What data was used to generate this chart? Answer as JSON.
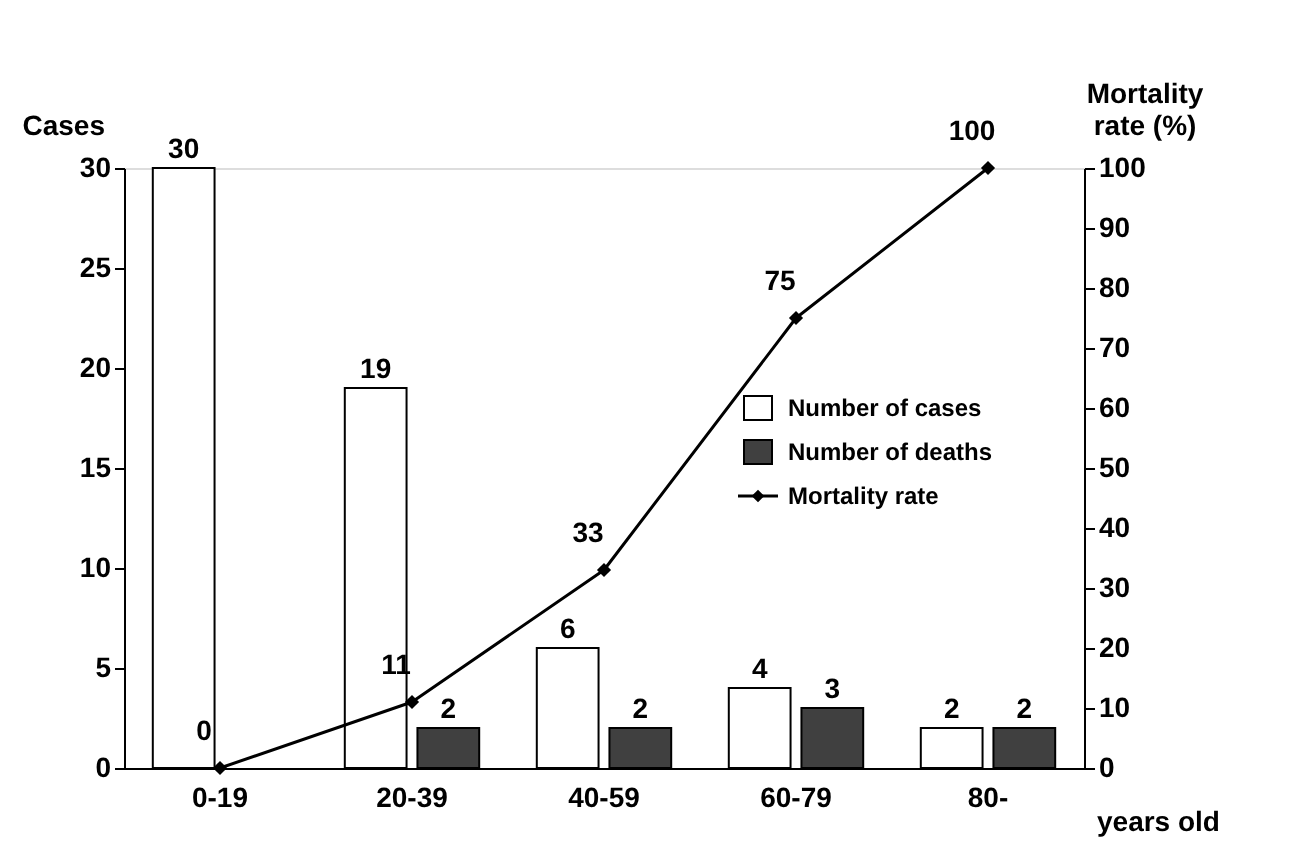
{
  "chart_data": {
    "type": "bar",
    "categories": [
      "0-19",
      "20-39",
      "40-59",
      "60-79",
      "80-"
    ],
    "xlabel": "years old",
    "ylabel": "Cases",
    "y2label": "Mortality rate (%)",
    "ylim": [
      0,
      30
    ],
    "yticks": [
      0,
      5,
      10,
      15,
      20,
      25,
      30
    ],
    "y2lim": [
      0,
      100
    ],
    "y2ticks": [
      0,
      10,
      20,
      30,
      40,
      50,
      60,
      70,
      80,
      90,
      100
    ],
    "series": [
      {
        "name": "Number of cases",
        "color": "#ffffff",
        "values": [
          30,
          19,
          6,
          4,
          2
        ]
      },
      {
        "name": "Number of deaths",
        "color": "#404040",
        "values": [
          0,
          2,
          2,
          3,
          2
        ],
        "value_labels": [
          null,
          "2",
          "2",
          "3",
          "2"
        ]
      },
      {
        "name": "Mortality rate",
        "type": "line",
        "axis": "y2",
        "color": "#000000",
        "marker": "diamond",
        "values": [
          0,
          11,
          33,
          75,
          100
        ]
      }
    ],
    "data_labels": true,
    "legend": "right",
    "grid": false
  }
}
